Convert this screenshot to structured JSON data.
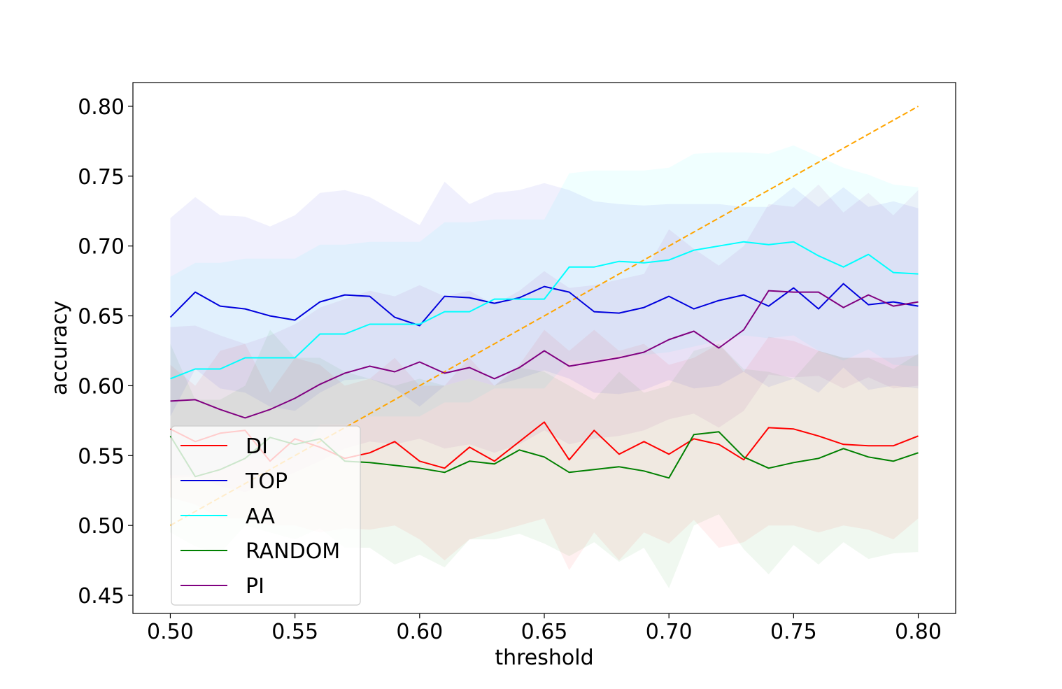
{
  "chart_data": {
    "type": "line",
    "title": "",
    "xlabel": "threshold",
    "ylabel": "accuracy",
    "xlim": [
      0.485,
      0.815
    ],
    "ylim": [
      0.437,
      0.817
    ],
    "xticks": [
      "0.50",
      "0.55",
      "0.60",
      "0.65",
      "0.70",
      "0.75",
      "0.80"
    ],
    "yticks": [
      "0.45",
      "0.50",
      "0.55",
      "0.60",
      "0.65",
      "0.70",
      "0.75",
      "0.80"
    ],
    "legend_position": "lower-left",
    "grid": false,
    "x": [
      0.5,
      0.51,
      0.52,
      0.53,
      0.54,
      0.55,
      0.56,
      0.57,
      0.58,
      0.59,
      0.6,
      0.61,
      0.62,
      0.63,
      0.64,
      0.65,
      0.66,
      0.67,
      0.68,
      0.69,
      0.7,
      0.71,
      0.72,
      0.73,
      0.74,
      0.75,
      0.76,
      0.77,
      0.78,
      0.79,
      0.8
    ],
    "series": [
      {
        "name": "DI",
        "color": "#ff0000",
        "values": [
          0.569,
          0.56,
          0.566,
          0.568,
          0.546,
          0.562,
          0.556,
          0.548,
          0.552,
          0.56,
          0.546,
          0.541,
          0.556,
          0.546,
          0.56,
          0.574,
          0.547,
          0.568,
          0.551,
          0.56,
          0.551,
          0.562,
          0.558,
          0.547,
          0.57,
          0.569,
          0.564,
          0.558,
          0.557,
          0.557,
          0.564
        ],
        "lower": [
          0.52,
          0.515,
          0.505,
          0.505,
          0.5,
          0.5,
          0.495,
          0.498,
          0.497,
          0.5,
          0.49,
          0.475,
          0.49,
          0.495,
          0.5,
          0.505,
          0.468,
          0.495,
          0.475,
          0.495,
          0.487,
          0.504,
          0.484,
          0.488,
          0.5,
          0.5,
          0.495,
          0.5,
          0.497,
          0.49,
          0.505
        ],
        "upper": [
          0.615,
          0.6,
          0.625,
          0.63,
          0.595,
          0.62,
          0.615,
          0.6,
          0.605,
          0.62,
          0.6,
          0.6,
          0.62,
          0.6,
          0.615,
          0.64,
          0.625,
          0.64,
          0.625,
          0.63,
          0.615,
          0.62,
          0.63,
          0.61,
          0.635,
          0.632,
          0.625,
          0.62,
          0.62,
          0.62,
          0.622
        ]
      },
      {
        "name": "TOP",
        "color": "#0000dd",
        "values": [
          0.649,
          0.667,
          0.657,
          0.655,
          0.65,
          0.647,
          0.66,
          0.665,
          0.664,
          0.649,
          0.643,
          0.664,
          0.663,
          0.659,
          0.663,
          0.671,
          0.667,
          0.653,
          0.652,
          0.656,
          0.664,
          0.655,
          0.661,
          0.665,
          0.657,
          0.67,
          0.655,
          0.673,
          0.658,
          0.66,
          0.657
        ],
        "lower": [
          0.578,
          0.612,
          0.598,
          0.595,
          0.585,
          0.582,
          0.595,
          0.604,
          0.605,
          0.598,
          0.585,
          0.6,
          0.605,
          0.6,
          0.605,
          0.611,
          0.605,
          0.595,
          0.594,
          0.597,
          0.604,
          0.598,
          0.6,
          0.61,
          0.599,
          0.605,
          0.595,
          0.613,
          0.597,
          0.6,
          0.598
        ],
        "upper": [
          0.72,
          0.735,
          0.722,
          0.721,
          0.714,
          0.722,
          0.738,
          0.74,
          0.735,
          0.725,
          0.715,
          0.746,
          0.73,
          0.738,
          0.74,
          0.745,
          0.74,
          0.732,
          0.73,
          0.729,
          0.73,
          0.73,
          0.73,
          0.728,
          0.728,
          0.742,
          0.728,
          0.742,
          0.728,
          0.732,
          0.727
        ]
      },
      {
        "name": "AA",
        "color": "#00ffff",
        "values": [
          0.605,
          0.612,
          0.612,
          0.62,
          0.62,
          0.62,
          0.637,
          0.637,
          0.644,
          0.644,
          0.644,
          0.653,
          0.653,
          0.662,
          0.662,
          0.662,
          0.685,
          0.685,
          0.689,
          0.688,
          0.69,
          0.697,
          0.7,
          0.703,
          0.701,
          0.703,
          0.693,
          0.685,
          0.694,
          0.681,
          0.68
        ],
        "lower": [
          0.536,
          0.536,
          0.541,
          0.548,
          0.548,
          0.548,
          0.572,
          0.572,
          0.578,
          0.578,
          0.578,
          0.588,
          0.588,
          0.598,
          0.598,
          0.598,
          0.618,
          0.618,
          0.622,
          0.622,
          0.624,
          0.628,
          0.632,
          0.636,
          0.634,
          0.636,
          0.625,
          0.618,
          0.626,
          0.615,
          0.614
        ],
        "upper": [
          0.678,
          0.688,
          0.688,
          0.691,
          0.691,
          0.691,
          0.701,
          0.701,
          0.703,
          0.703,
          0.703,
          0.717,
          0.717,
          0.719,
          0.719,
          0.719,
          0.752,
          0.754,
          0.754,
          0.754,
          0.756,
          0.766,
          0.767,
          0.767,
          0.766,
          0.772,
          0.764,
          0.756,
          0.751,
          0.744,
          0.742
        ]
      },
      {
        "name": "RANDOM",
        "color": "#008000",
        "values": [
          0.564,
          0.535,
          0.54,
          0.548,
          0.563,
          0.558,
          0.562,
          0.546,
          0.545,
          0.543,
          0.541,
          0.538,
          0.546,
          0.544,
          0.554,
          0.549,
          0.538,
          0.54,
          0.542,
          0.539,
          0.534,
          0.565,
          0.567,
          0.549,
          0.541,
          0.545,
          0.548,
          0.555,
          0.549,
          0.546,
          0.552
        ],
        "lower": [
          0.495,
          0.485,
          0.48,
          0.5,
          0.495,
          0.49,
          0.498,
          0.484,
          0.484,
          0.472,
          0.479,
          0.47,
          0.49,
          0.49,
          0.494,
          0.487,
          0.478,
          0.488,
          0.474,
          0.484,
          0.455,
          0.5,
          0.508,
          0.483,
          0.465,
          0.486,
          0.472,
          0.488,
          0.476,
          0.48,
          0.481
        ],
        "upper": [
          0.63,
          0.59,
          0.59,
          0.6,
          0.64,
          0.62,
          0.62,
          0.61,
          0.605,
          0.6,
          0.605,
          0.6,
          0.605,
          0.6,
          0.613,
          0.61,
          0.6,
          0.59,
          0.61,
          0.595,
          0.6,
          0.625,
          0.63,
          0.612,
          0.61,
          0.605,
          0.625,
          0.62,
          0.62,
          0.612,
          0.623
        ]
      },
      {
        "name": "PI",
        "color": "#800080",
        "values": [
          0.589,
          0.59,
          0.583,
          0.577,
          0.583,
          0.591,
          0.601,
          0.609,
          0.614,
          0.61,
          0.617,
          0.609,
          0.613,
          0.605,
          0.613,
          0.625,
          0.614,
          0.617,
          0.62,
          0.624,
          0.633,
          0.639,
          0.627,
          0.64,
          0.668,
          0.667,
          0.667,
          0.656,
          0.665,
          0.657,
          0.66
        ],
        "lower": [
          0.534,
          0.535,
          0.528,
          0.524,
          0.53,
          0.538,
          0.546,
          0.555,
          0.56,
          0.558,
          0.562,
          0.555,
          0.558,
          0.552,
          0.558,
          0.568,
          0.558,
          0.562,
          0.564,
          0.568,
          0.576,
          0.58,
          0.57,
          0.582,
          0.608,
          0.606,
          0.607,
          0.598,
          0.606,
          0.598,
          0.6
        ],
        "upper": [
          0.642,
          0.643,
          0.636,
          0.63,
          0.636,
          0.644,
          0.656,
          0.662,
          0.668,
          0.664,
          0.672,
          0.664,
          0.668,
          0.658,
          0.668,
          0.682,
          0.67,
          0.672,
          0.676,
          0.68,
          0.712,
          0.698,
          0.686,
          0.7,
          0.73,
          0.728,
          0.744,
          0.724,
          0.738,
          0.722,
          0.74
        ]
      }
    ],
    "reference_line": {
      "style": "dashed",
      "color": "#ffa500",
      "points": [
        [
          0.5,
          0.5
        ],
        [
          0.8,
          0.8
        ]
      ]
    }
  }
}
